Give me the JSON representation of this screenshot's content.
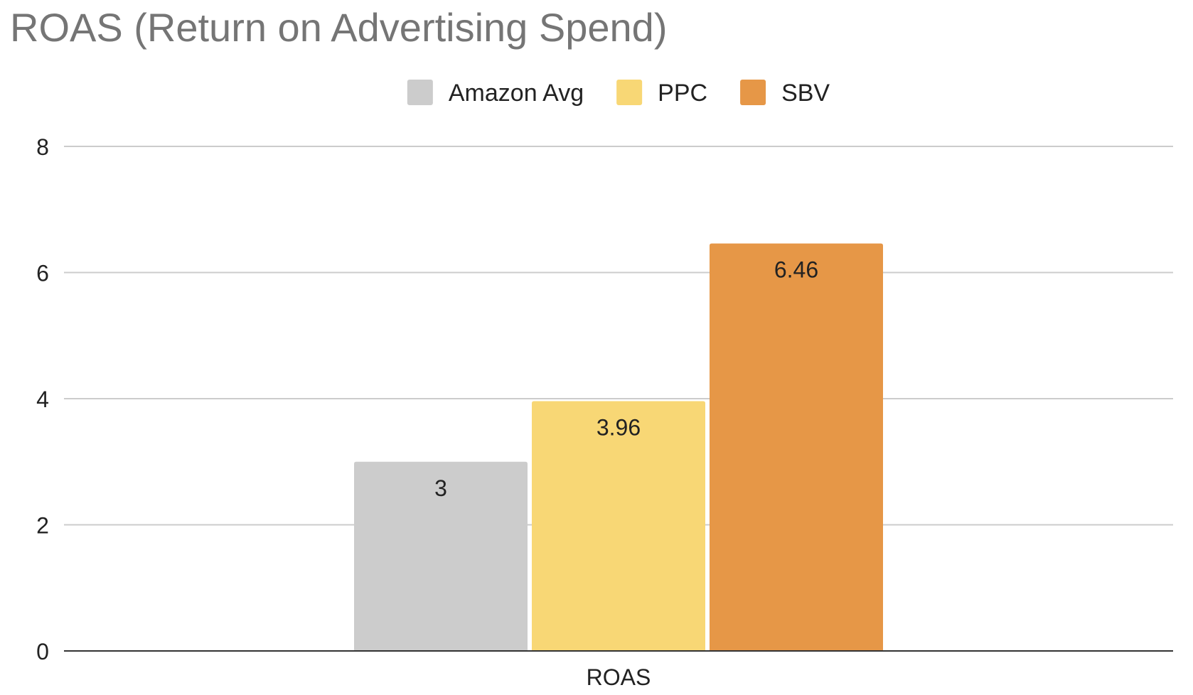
{
  "chart_data": {
    "type": "bar",
    "title": "ROAS (Return on Advertising Spend)",
    "categories": [
      "ROAS"
    ],
    "series": [
      {
        "name": "Amazon Avg",
        "values": [
          3
        ],
        "color": "#cccccc",
        "data_label": "3"
      },
      {
        "name": "PPC",
        "values": [
          3.96
        ],
        "color": "#f8d775",
        "data_label": "3.96"
      },
      {
        "name": "SBV",
        "values": [
          6.46
        ],
        "color": "#e69747",
        "data_label": "6.46"
      }
    ],
    "xlabel": "",
    "ylabel": "",
    "ylim": [
      0,
      8
    ],
    "yticks": [
      0,
      2,
      4,
      6,
      8
    ],
    "grid": true,
    "legend_position": "top-center",
    "colors": {
      "title": "#757575",
      "gridline": "#cccccc",
      "axis": "#333333",
      "text": "#222222"
    }
  }
}
